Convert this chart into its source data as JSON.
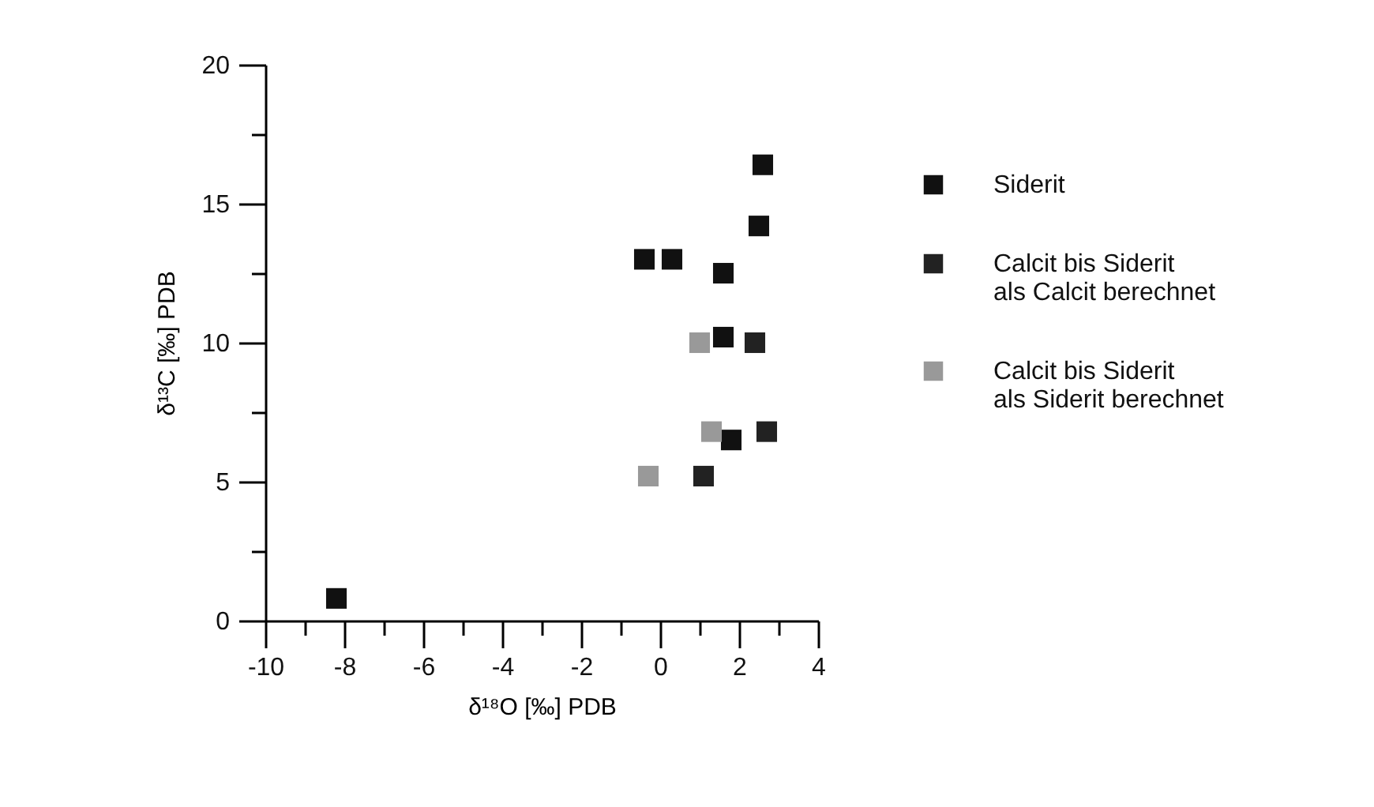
{
  "chart_data": {
    "type": "scatter",
    "xlabel": "δ¹⁸O [‰] PDB",
    "ylabel": "δ¹³C [‰] PDB",
    "xlim": [
      -10,
      4
    ],
    "xticks": [
      -10,
      {
        "value": -9,
        "label": null
      },
      -8,
      {
        "value": -7,
        "label": null
      },
      -6,
      {
        "value": -5,
        "label": null
      },
      -4,
      {
        "value": -3,
        "label": null
      },
      -2,
      {
        "value": -1,
        "label": null
      },
      0,
      {
        "value": 1,
        "label": null
      },
      2,
      {
        "value": 3,
        "label": null
      },
      4
    ],
    "ylim": [
      0,
      20
    ],
    "yticks": [
      0,
      {
        "value": 2.5,
        "label": null
      },
      5,
      {
        "value": 7.5,
        "label": null
      },
      10,
      {
        "value": 12.5,
        "label": null
      },
      15,
      {
        "value": 17.5,
        "label": null
      },
      20
    ],
    "grid": false,
    "legend": "right",
    "marker": "square",
    "series": [
      {
        "name": "Siderit",
        "color": "#111111",
        "x": [
          -8.2,
          -0.4,
          0.3,
          1.6,
          1.6,
          1.8,
          2.5,
          2.6
        ],
        "values": [
          0.8,
          13.0,
          13.0,
          12.5,
          10.2,
          6.5,
          14.2,
          16.4
        ]
      },
      {
        "name": "Calcit bis Siderit\nals Calcit berechnet",
        "color": "#222222",
        "x": [
          2.4,
          2.7,
          1.1
        ],
        "values": [
          10.0,
          6.8,
          5.2
        ]
      },
      {
        "name": "Calcit bis Siderit\nals Siderit berechnet",
        "color": "#999999",
        "x": [
          1.0,
          1.3,
          -0.3
        ],
        "values": [
          10.0,
          6.8,
          5.2
        ]
      }
    ]
  }
}
